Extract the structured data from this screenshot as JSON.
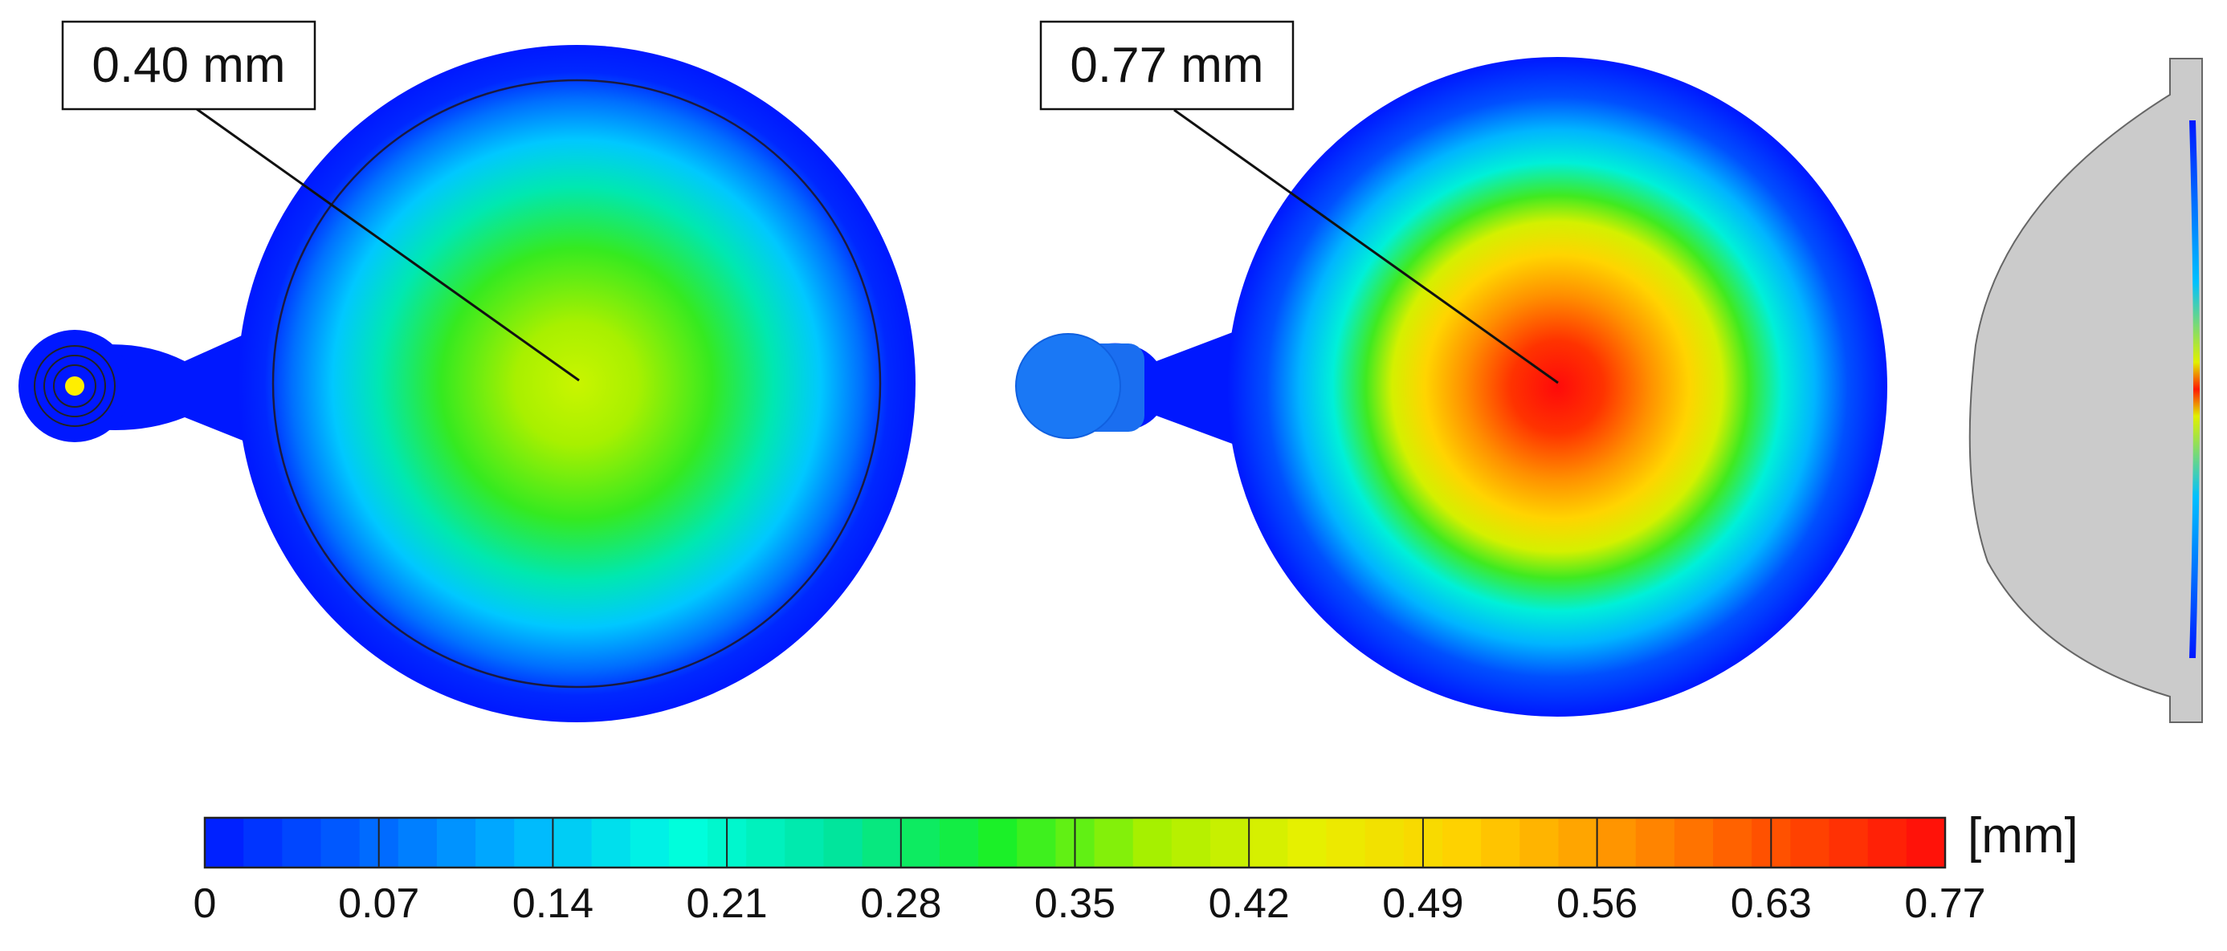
{
  "panels": [
    {
      "id": "left-part",
      "callout": "0.40 mm",
      "center_value": 0.4
    },
    {
      "id": "middle-part",
      "callout": "0.77 mm",
      "center_value": 0.77
    },
    {
      "id": "side-section",
      "callout": ""
    }
  ],
  "colorbar": {
    "unit": "[mm]",
    "min": 0,
    "max": 0.77,
    "segments": 45,
    "ticks": [
      "0",
      "0.07",
      "0.14",
      "0.21",
      "0.28",
      "0.35",
      "0.42",
      "0.49",
      "0.56",
      "0.63",
      "0.77"
    ],
    "colors": [
      "#0018ff",
      "#0063ff",
      "#00b5ff",
      "#00ffe0",
      "#00e5a0",
      "#19f028",
      "#a8f000",
      "#e8f000",
      "#ffd000",
      "#ff9000",
      "#ff4a00",
      "#ff0a0a"
    ]
  },
  "colors": {
    "min_color": "#0018ff",
    "max_color": "#ff0a0a",
    "gate_dot": "#ffee00",
    "section_gray": "#cbcbcb"
  }
}
